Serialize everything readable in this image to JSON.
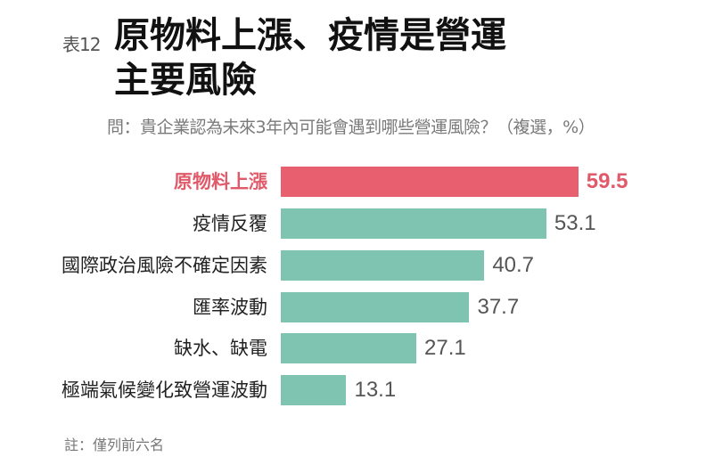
{
  "header": {
    "tag": "表12",
    "title_line1": "原物料上漲、疫情是營運",
    "title_line2": "主要風險",
    "subtitle": "問：貴企業認為未來3年內可能會遇到哪些營運風險？（複選，%）"
  },
  "colors": {
    "highlight": "#e8606f",
    "bar": "#7fc4b1",
    "highlight_text": "#e05a6a"
  },
  "rows": [
    {
      "label": "原物料上漲",
      "value": "59.5"
    },
    {
      "label": "疫情反覆",
      "value": "53.1"
    },
    {
      "label": "國際政治風險不確定因素",
      "value": "40.7"
    },
    {
      "label": "匯率波動",
      "value": "37.7"
    },
    {
      "label": "缺水、缺電",
      "value": "27.1"
    },
    {
      "label": "極端氣候變化致營運波動",
      "value": "13.1"
    }
  ],
  "note": "註：僅列前六名",
  "chart_data": {
    "type": "bar",
    "orientation": "horizontal",
    "title": "原物料上漲、疫情是營運主要風險",
    "subtitle": "問：貴企業認為未來3年內可能會遇到哪些營運風險？（複選，%）",
    "categories": [
      "原物料上漲",
      "疫情反覆",
      "國際政治風險不確定因素",
      "匯率波動",
      "缺水、缺電",
      "極端氣候變化致營運波動"
    ],
    "values": [
      59.5,
      53.1,
      40.7,
      37.7,
      27.1,
      13.1
    ],
    "highlighted": [
      "原物料上漲"
    ],
    "xlabel": "",
    "ylabel": "",
    "unit": "%",
    "grid": false,
    "note": "註：僅列前六名"
  }
}
